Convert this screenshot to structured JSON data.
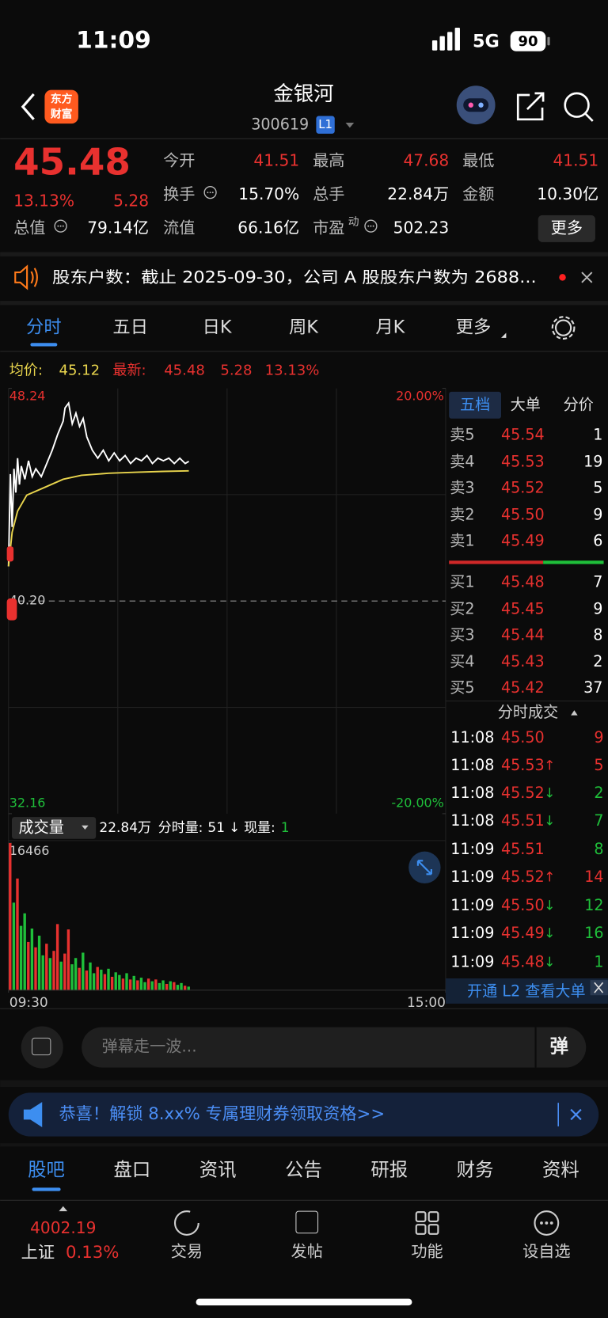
{
  "status": {
    "time": "11:09",
    "network": "5G",
    "battery": "90"
  },
  "header": {
    "logo": [
      "东方",
      "财富"
    ],
    "name": "金银河",
    "code": "300619",
    "badge": "L1"
  },
  "quote": {
    "price": "45.48",
    "percent": "13.13%",
    "change": "5.28",
    "stats": [
      {
        "label": "今开",
        "value": "41.51"
      },
      {
        "label": "最高",
        "value": "47.68"
      },
      {
        "label": "最低",
        "value": "41.51"
      },
      {
        "label": "换手",
        "value": "15.70%"
      },
      {
        "label": "总手",
        "value": "22.84万"
      },
      {
        "label": "金额",
        "value": "10.30亿"
      },
      {
        "label": "总值",
        "value": "79.14亿"
      },
      {
        "label": "流值",
        "value": "66.16亿"
      },
      {
        "label": "市盈",
        "sup": "动",
        "value": "502.23"
      }
    ],
    "more": "更多"
  },
  "notice": "股东户数：截止 2025-09-30，公司 A 股股东户数为 2688...",
  "tabs": [
    "分时",
    "五日",
    "日K",
    "周K",
    "月K",
    "更多"
  ],
  "info_bar": {
    "avg_label": "均价:",
    "avg": "45.12",
    "last_label": "最新:",
    "last": "45.48",
    "change": "5.28",
    "percent": "13.13%"
  },
  "intraday": {
    "ylim": [
      32.16,
      48.24
    ],
    "yticks": [
      48.24,
      {
        "value": 40.2,
        "label": "40.20"
      },
      32.16
    ],
    "y2lim": [
      -20,
      20
    ],
    "y2ticks": [
      {
        "value": 20,
        "label": "20.00%"
      },
      {
        "value": -20,
        "label": "-20.00%"
      }
    ],
    "xlim": [
      0,
      240
    ],
    "xticks": [
      {
        "value": 0,
        "label": "09:30"
      },
      {
        "value": 240,
        "label": "15:00"
      }
    ],
    "price": {
      "color": "#ffffff",
      "x": [
        0,
        1,
        2,
        3,
        4,
        5,
        6,
        7,
        9,
        11,
        13,
        15,
        18,
        21,
        24,
        27,
        30,
        31,
        33,
        35,
        37,
        39,
        41,
        43,
        46,
        49,
        52,
        55,
        58,
        61,
        64,
        67,
        70,
        73,
        76,
        79,
        82,
        85,
        88,
        91,
        94,
        97,
        99
      ],
      "values": [
        41.51,
        45.0,
        43.0,
        45.2,
        44.3,
        45.6,
        44.6,
        45.3,
        44.8,
        45.5,
        44.9,
        45.2,
        44.9,
        45.4,
        45.9,
        46.5,
        47.0,
        47.5,
        47.68,
        46.9,
        47.3,
        46.8,
        47.1,
        46.4,
        45.9,
        45.6,
        45.9,
        45.5,
        45.8,
        45.5,
        45.7,
        45.4,
        45.6,
        45.5,
        45.7,
        45.4,
        45.6,
        45.5,
        45.6,
        45.4,
        45.6,
        45.4,
        45.48
      ]
    },
    "avg": {
      "color": "#e8d44d",
      "x": [
        0,
        2,
        5,
        10,
        20,
        30,
        40,
        55,
        70,
        85,
        99
      ],
      "values": [
        41.51,
        42.8,
        43.6,
        44.2,
        44.5,
        44.8,
        44.95,
        45.03,
        45.07,
        45.1,
        45.12
      ]
    }
  },
  "volume": {
    "title": "成交量",
    "total": "22.84万",
    "minute_label": "分时量:",
    "minute": "51",
    "minute_arrow": "↓",
    "now_label": "现量:",
    "now": "1",
    "ylim": [
      0,
      16466
    ],
    "yticks": [
      16466
    ],
    "x": [
      0,
      2,
      4,
      6,
      8,
      10,
      12,
      14,
      16,
      18,
      20,
      22,
      24,
      26,
      28,
      30,
      32,
      34,
      36,
      38,
      40,
      42,
      44,
      46,
      48,
      50,
      52,
      54,
      56,
      58,
      60,
      62,
      64,
      66,
      68,
      70,
      72,
      74,
      76,
      78,
      80,
      82,
      84,
      86,
      88,
      90,
      92,
      94,
      96,
      98
    ],
    "values": [
      16466,
      9800,
      12500,
      7200,
      8600,
      5400,
      6900,
      4800,
      6100,
      3900,
      5200,
      3600,
      4400,
      7400,
      3200,
      4100,
      6800,
      2900,
      3600,
      2500,
      4200,
      2200,
      3100,
      1900,
      2600,
      2300,
      1800,
      2400,
      1500,
      2000,
      1700,
      1300,
      1900,
      1200,
      1600,
      1100,
      1400,
      900,
      1300,
      1000,
      1200,
      800,
      1100,
      700,
      1000,
      900,
      600,
      800,
      500,
      400
    ],
    "colors": [
      "#e8312f",
      "#1fbf3a",
      "#e8312f",
      "#1fbf3a",
      "#1fbf3a",
      "#e8312f",
      "#1fbf3a",
      "#e8312f",
      "#1fbf3a",
      "#1fbf3a",
      "#e8312f",
      "#1fbf3a",
      "#e8312f",
      "#e8312f",
      "#1fbf3a",
      "#e8312f",
      "#e8312f",
      "#1fbf3a",
      "#1fbf3a",
      "#e8312f",
      "#1fbf3a",
      "#e8312f",
      "#1fbf3a",
      "#1fbf3a",
      "#e8312f",
      "#1fbf3a",
      "#e8312f",
      "#1fbf3a",
      "#e8312f",
      "#1fbf3a",
      "#1fbf3a",
      "#e8312f",
      "#1fbf3a",
      "#e8312f",
      "#1fbf3a",
      "#e8312f",
      "#1fbf3a",
      "#1fbf3a",
      "#e8312f",
      "#1fbf3a",
      "#e8312f",
      "#1fbf3a",
      "#1fbf3a",
      "#e8312f",
      "#1fbf3a",
      "#e8312f",
      "#1fbf3a",
      "#1fbf3a",
      "#e8312f",
      "#1fbf3a"
    ]
  },
  "order_book": {
    "tabs": [
      "五档",
      "大单",
      "分价"
    ],
    "asks": [
      [
        "卖5",
        "45.54",
        "1"
      ],
      [
        "卖4",
        "45.53",
        "19"
      ],
      [
        "卖3",
        "45.52",
        "5"
      ],
      [
        "卖2",
        "45.50",
        "9"
      ],
      [
        "卖1",
        "45.49",
        "6"
      ]
    ],
    "bids": [
      [
        "买1",
        "45.48",
        "7"
      ],
      [
        "买2",
        "45.45",
        "9"
      ],
      [
        "买3",
        "45.44",
        "8"
      ],
      [
        "买4",
        "45.43",
        "2"
      ],
      [
        "买5",
        "45.42",
        "37"
      ]
    ],
    "trades_title": "分时成交",
    "trades": [
      {
        "time": "11:08",
        "price": "45.50",
        "volume": "9",
        "color": "#e8312f"
      },
      {
        "time": "11:08",
        "price": "45.53",
        "arrow": "↑",
        "volume": "5",
        "color": "#e8312f"
      },
      {
        "time": "11:08",
        "price": "45.52",
        "arrow": "↓",
        "volume": "2",
        "color": "#1fbf3a"
      },
      {
        "time": "11:08",
        "price": "45.51",
        "arrow": "↓",
        "volume": "7",
        "color": "#1fbf3a"
      },
      {
        "time": "11:09",
        "price": "45.51",
        "volume": "8",
        "color": "#1fbf3a"
      },
      {
        "time": "11:09",
        "price": "45.52",
        "arrow": "↑",
        "volume": "14",
        "color": "#e8312f"
      },
      {
        "time": "11:09",
        "price": "45.50",
        "arrow": "↓",
        "volume": "12",
        "color": "#1fbf3a"
      },
      {
        "time": "11:09",
        "price": "45.49",
        "arrow": "↓",
        "volume": "16",
        "color": "#1fbf3a"
      },
      {
        "time": "11:09",
        "price": "45.48",
        "arrow": "↓",
        "volume": "1",
        "color": "#1fbf3a"
      }
    ],
    "l2_banner": "开通 L2 查看大单"
  },
  "danmu": {
    "placeholder": "弹幕走一波...",
    "button": "弹"
  },
  "promo": "恭喜！解锁 8.xx% 专属理财券领取资格>>",
  "bottom_tabs": [
    "股吧",
    "盘口",
    "资讯",
    "公告",
    "研报",
    "财务",
    "资料"
  ],
  "nav": {
    "index_value": "4002.19",
    "index_name": "上证",
    "index_percent": "0.13%",
    "items": [
      "交易",
      "发帖",
      "功能",
      "设自选"
    ]
  }
}
